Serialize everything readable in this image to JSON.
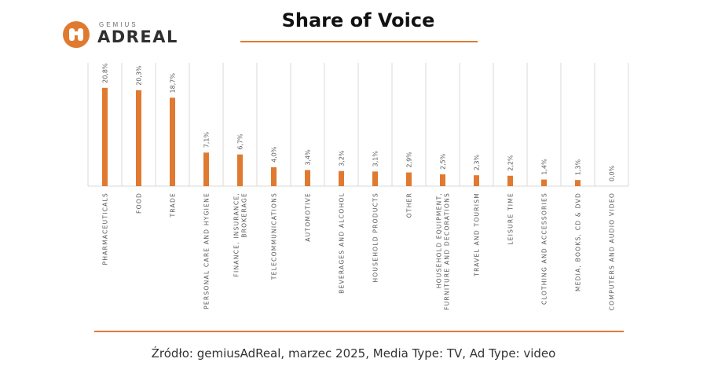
{
  "brand": {
    "small": "GEMIUS",
    "big": "ADREAL",
    "accent": "#e07a30"
  },
  "title": "Share of Voice",
  "source": "Źródło: gemiusAdReal, marzec 2025, Media Type: TV, Ad Type: video",
  "chart_data": {
    "type": "bar",
    "categories": [
      "PHARMACEUTICALS",
      "FOOD",
      "TRADE",
      "PERSONAL CARE AND HYGIENE",
      "FINANCE, INSURANCE, BROKERAGE",
      "TELECOMMUNICATIONS",
      "AUTOMOTIVE",
      "BEVERAGES AND ALCOHOL",
      "HOUSEHOLD PRODUCTS",
      "OTHER",
      "HOUSEHOLD EQUIPMENT, FURNITURE AND DECORATIONS",
      "TRAVEL AND TOURISM",
      "LEISURE TIME",
      "CLOTHING AND ACCESSORIES",
      "MEDIA, BOOKS, CD & DVD",
      "COMPUTERS AND AUDIO VIDEO"
    ],
    "values": [
      20.8,
      20.3,
      18.7,
      7.1,
      6.7,
      4.0,
      3.4,
      3.2,
      3.1,
      2.9,
      2.5,
      2.3,
      2.2,
      1.4,
      1.3,
      0.0
    ],
    "data_labels": [
      "20,8%",
      "20,3%",
      "18,7%",
      "7,1%",
      "6,7%",
      "4,0%",
      "3,4%",
      "3,2%",
      "3,1%",
      "2,9%",
      "2,5%",
      "2,3%",
      "2,2%",
      "1,4%",
      "1,3%",
      "0,0%"
    ],
    "ylim": [
      0,
      24
    ],
    "grid": "vertical",
    "bar_color": "#e07a30",
    "grid_color": "#d9d9d9",
    "label_color": "#595959"
  }
}
